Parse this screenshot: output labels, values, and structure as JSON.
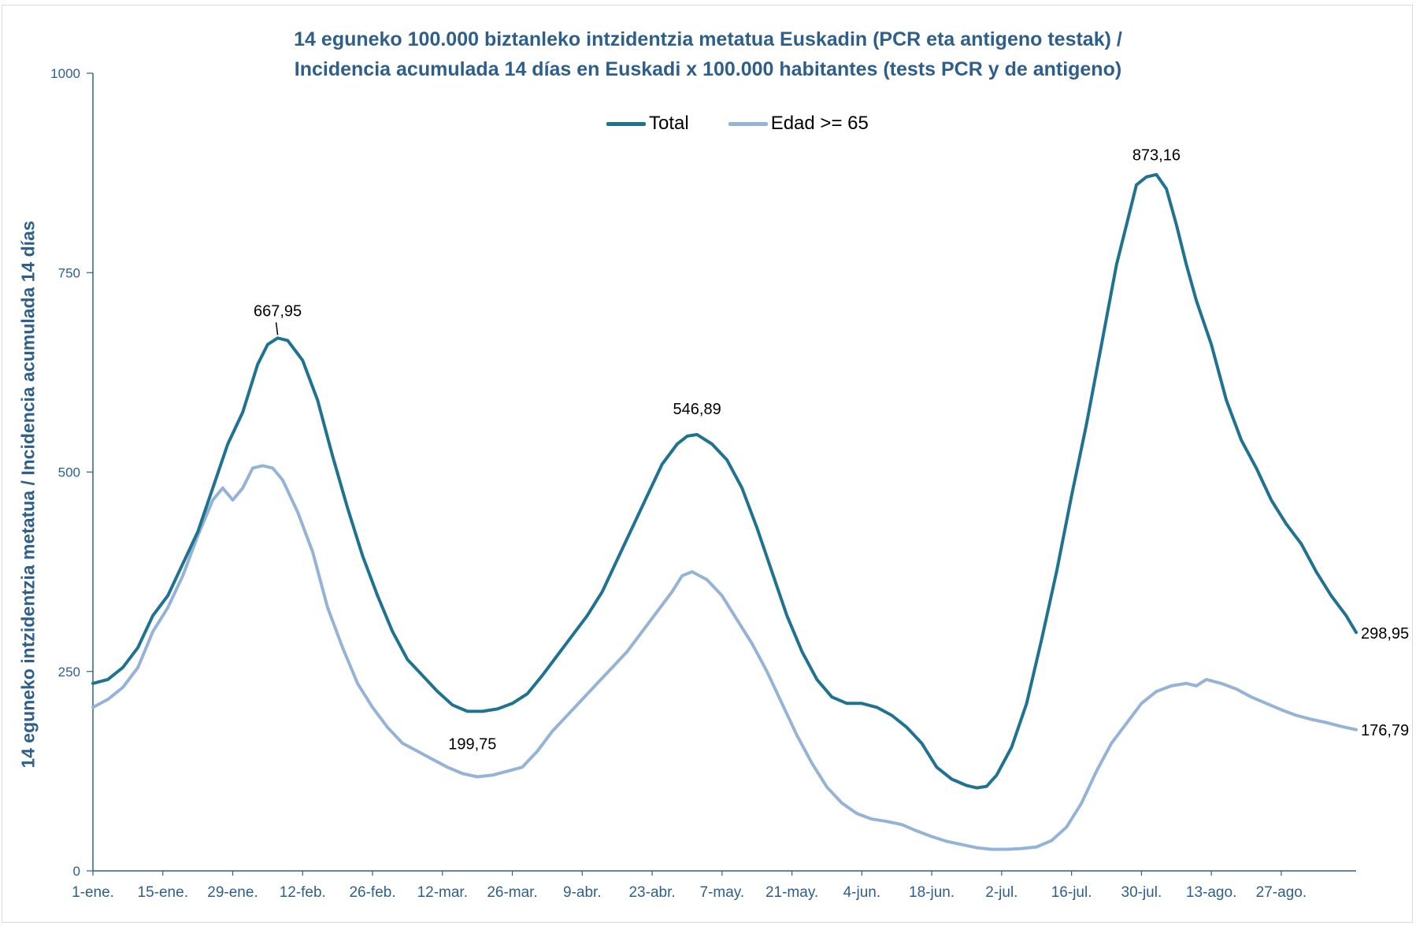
{
  "chart_data": {
    "type": "line",
    "title_line1": "14 eguneko 100.000 biztanleko intzidentzia metatua Euskadin (PCR eta antigeno testak) /",
    "title_line2": "Incidencia acumulada 14 días en Euskadi x 100.000 habitantes (tests PCR y de antigeno)",
    "ylabel": "14 eguneko intzidentzia metatua / Incidencia acumulada 14 días",
    "xlabel": "",
    "ylim": [
      0,
      1000
    ],
    "yticks": [
      "0",
      "250",
      "500",
      "750",
      "1000"
    ],
    "x_tick_labels": [
      "1-ene.",
      "15-ene.",
      "29-ene.",
      "12-feb.",
      "26-feb.",
      "12-mar.",
      "26-mar.",
      "9-abr.",
      "23-abr.",
      "7-may.",
      "21-may.",
      "4-jun.",
      "18-jun.",
      "2-jul.",
      "16-jul.",
      "30-jul.",
      "13-ago.",
      "27-ago."
    ],
    "legend_position": "top",
    "grid": false,
    "series": [
      {
        "name": "Total",
        "color": "#1f7391",
        "points": [
          [
            0,
            235
          ],
          [
            3,
            240
          ],
          [
            6,
            255
          ],
          [
            9,
            280
          ],
          [
            12,
            320
          ],
          [
            15,
            345
          ],
          [
            18,
            385
          ],
          [
            21,
            425
          ],
          [
            24,
            480
          ],
          [
            27,
            535
          ],
          [
            30,
            575
          ],
          [
            33,
            635
          ],
          [
            35,
            660
          ],
          [
            37,
            668
          ],
          [
            39,
            665
          ],
          [
            42,
            640
          ],
          [
            45,
            590
          ],
          [
            48,
            520
          ],
          [
            51,
            455
          ],
          [
            54,
            395
          ],
          [
            57,
            345
          ],
          [
            60,
            300
          ],
          [
            63,
            265
          ],
          [
            66,
            245
          ],
          [
            69,
            225
          ],
          [
            72,
            208
          ],
          [
            75,
            200
          ],
          [
            78,
            200
          ],
          [
            81,
            203
          ],
          [
            84,
            210
          ],
          [
            87,
            222
          ],
          [
            90,
            245
          ],
          [
            93,
            270
          ],
          [
            96,
            295
          ],
          [
            99,
            320
          ],
          [
            102,
            350
          ],
          [
            105,
            390
          ],
          [
            108,
            430
          ],
          [
            111,
            470
          ],
          [
            114,
            510
          ],
          [
            117,
            535
          ],
          [
            119,
            545
          ],
          [
            121,
            547
          ],
          [
            124,
            535
          ],
          [
            127,
            515
          ],
          [
            130,
            480
          ],
          [
            133,
            430
          ],
          [
            136,
            375
          ],
          [
            139,
            320
          ],
          [
            142,
            275
          ],
          [
            145,
            240
          ],
          [
            148,
            218
          ],
          [
            151,
            210
          ],
          [
            154,
            210
          ],
          [
            157,
            205
          ],
          [
            160,
            195
          ],
          [
            163,
            180
          ],
          [
            166,
            160
          ],
          [
            169,
            130
          ],
          [
            172,
            115
          ],
          [
            175,
            107
          ],
          [
            177,
            104
          ],
          [
            179,
            106
          ],
          [
            181,
            120
          ],
          [
            184,
            155
          ],
          [
            187,
            210
          ],
          [
            190,
            290
          ],
          [
            193,
            375
          ],
          [
            196,
            470
          ],
          [
            199,
            560
          ],
          [
            202,
            660
          ],
          [
            205,
            760
          ],
          [
            207,
            810
          ],
          [
            209,
            860
          ],
          [
            211,
            870
          ],
          [
            213,
            873
          ],
          [
            215,
            855
          ],
          [
            217,
            810
          ],
          [
            219,
            760
          ],
          [
            221,
            715
          ],
          [
            224,
            660
          ],
          [
            227,
            590
          ],
          [
            230,
            540
          ],
          [
            233,
            505
          ],
          [
            236,
            465
          ],
          [
            239,
            435
          ],
          [
            242,
            410
          ],
          [
            245,
            375
          ],
          [
            248,
            345
          ],
          [
            251,
            320
          ],
          [
            253,
            299
          ]
        ]
      },
      {
        "name": "Edad >= 65",
        "color": "#95b3d7",
        "points": [
          [
            0,
            205
          ],
          [
            3,
            215
          ],
          [
            6,
            230
          ],
          [
            9,
            255
          ],
          [
            12,
            300
          ],
          [
            15,
            330
          ],
          [
            18,
            370
          ],
          [
            21,
            420
          ],
          [
            24,
            465
          ],
          [
            26,
            480
          ],
          [
            28,
            465
          ],
          [
            30,
            480
          ],
          [
            32,
            505
          ],
          [
            34,
            508
          ],
          [
            36,
            505
          ],
          [
            38,
            490
          ],
          [
            41,
            450
          ],
          [
            44,
            400
          ],
          [
            47,
            330
          ],
          [
            50,
            280
          ],
          [
            53,
            235
          ],
          [
            56,
            205
          ],
          [
            59,
            180
          ],
          [
            62,
            160
          ],
          [
            65,
            150
          ],
          [
            68,
            140
          ],
          [
            71,
            130
          ],
          [
            74,
            122
          ],
          [
            77,
            118
          ],
          [
            80,
            120
          ],
          [
            83,
            125
          ],
          [
            86,
            130
          ],
          [
            89,
            150
          ],
          [
            92,
            175
          ],
          [
            95,
            195
          ],
          [
            98,
            215
          ],
          [
            101,
            235
          ],
          [
            104,
            255
          ],
          [
            107,
            275
          ],
          [
            110,
            300
          ],
          [
            113,
            325
          ],
          [
            116,
            350
          ],
          [
            118,
            370
          ],
          [
            120,
            375
          ],
          [
            123,
            365
          ],
          [
            126,
            345
          ],
          [
            129,
            315
          ],
          [
            132,
            285
          ],
          [
            135,
            250
          ],
          [
            138,
            210
          ],
          [
            141,
            170
          ],
          [
            144,
            135
          ],
          [
            147,
            105
          ],
          [
            150,
            85
          ],
          [
            153,
            72
          ],
          [
            156,
            65
          ],
          [
            159,
            62
          ],
          [
            162,
            58
          ],
          [
            165,
            50
          ],
          [
            168,
            43
          ],
          [
            171,
            37
          ],
          [
            174,
            33
          ],
          [
            177,
            29
          ],
          [
            180,
            27
          ],
          [
            183,
            27
          ],
          [
            186,
            28
          ],
          [
            189,
            30
          ],
          [
            192,
            38
          ],
          [
            195,
            55
          ],
          [
            198,
            85
          ],
          [
            201,
            125
          ],
          [
            204,
            160
          ],
          [
            207,
            185
          ],
          [
            210,
            210
          ],
          [
            213,
            225
          ],
          [
            216,
            232
          ],
          [
            219,
            235
          ],
          [
            221,
            232
          ],
          [
            223,
            240
          ],
          [
            226,
            235
          ],
          [
            229,
            228
          ],
          [
            232,
            218
          ],
          [
            235,
            210
          ],
          [
            238,
            202
          ],
          [
            241,
            195
          ],
          [
            244,
            190
          ],
          [
            247,
            186
          ],
          [
            250,
            181
          ],
          [
            253,
            177
          ]
        ]
      }
    ],
    "annotations": [
      {
        "x": 37,
        "y": 667.95,
        "text": "667,95"
      },
      {
        "x": 76,
        "y": 199.75,
        "text": "199,75"
      },
      {
        "x": 121,
        "y": 546.89,
        "text": "546,89"
      },
      {
        "x": 213,
        "y": 873.16,
        "text": "873,16"
      },
      {
        "x": 253,
        "y": 298.95,
        "text": "298,95"
      },
      {
        "x": 253,
        "y": 176.79,
        "text": "176,79"
      }
    ]
  }
}
